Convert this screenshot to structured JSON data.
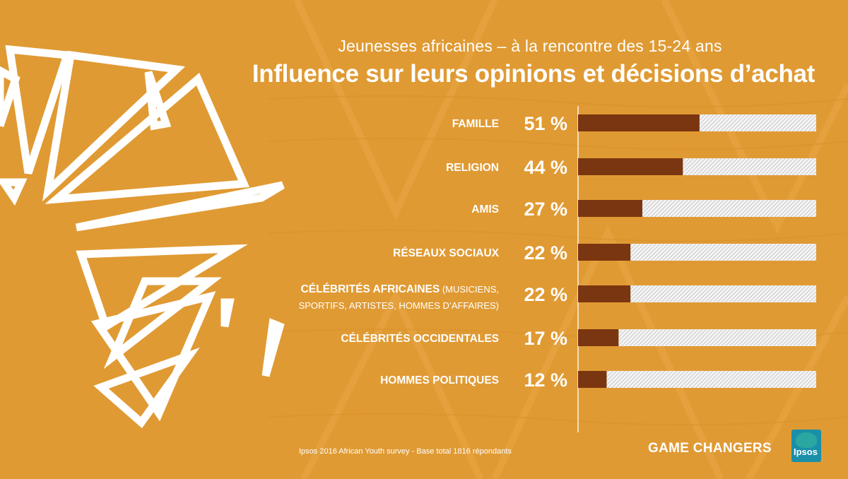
{
  "header": {
    "subtitle": "Jeunesses africaines – à la rencontre des 15-24 ans",
    "title": "Influence sur leurs opinions et décisions d’achat"
  },
  "chart_data": {
    "type": "bar",
    "orientation": "horizontal",
    "categories": [
      {
        "label_main": "FAMILLE",
        "label_rest": ""
      },
      {
        "label_main": "RELIGION",
        "label_rest": ""
      },
      {
        "label_main": "AMIS",
        "label_rest": ""
      },
      {
        "label_main": "RÉSEAUX SOCIAUX",
        "label_rest": ""
      },
      {
        "label_main": "CÉLÉBRITÉS AFRICAINES",
        "label_rest": " (MUSICIENS, SPORTIFS, ARTISTES, HOMMES D’AFFAIRES)"
      },
      {
        "label_main": "CÉLÉBRITÉS OCCIDENTALES",
        "label_rest": ""
      },
      {
        "label_main": "HOMMES POLITIQUES",
        "label_rest": ""
      }
    ],
    "values": [
      51,
      44,
      27,
      22,
      22,
      17,
      12
    ],
    "value_labels": [
      "51 %",
      "44 %",
      "27 %",
      "22 %",
      "22 %",
      "17 %",
      "12 %"
    ],
    "xlim": [
      0,
      100
    ],
    "colors": {
      "filled": "#7a3610",
      "remainder": "hatched light grey"
    }
  },
  "footer": {
    "source": "Ipsos 2016 African Youth survey  - Base total 1816 répondants",
    "brand": "GAME CHANGERS",
    "logo_text": "Ipsos"
  }
}
